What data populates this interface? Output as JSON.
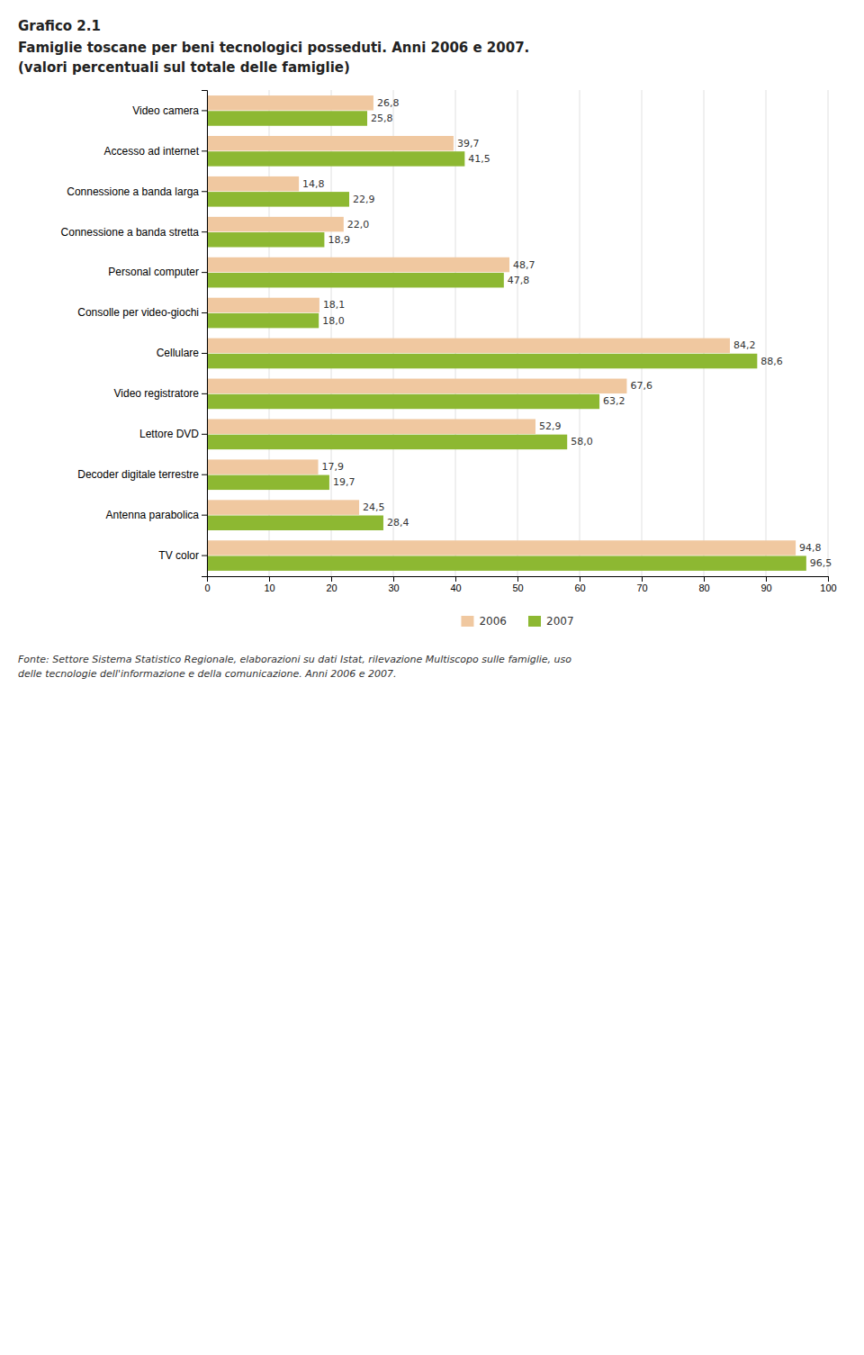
{
  "chart_data": {
    "type": "bar",
    "orientation": "horizontal",
    "title": "Grafico 2.1",
    "subtitle": [
      "Famiglie toscane per beni tecnologici posseduti. Anni 2006 e 2007.",
      "(valori percentuali sul totale delle famiglie)"
    ],
    "categories": [
      "Video camera",
      "Accesso ad internet",
      "Connessione a banda larga",
      "Connessione a banda stretta",
      "Personal computer",
      "Consolle per video-giochi",
      "Cellulare",
      "Video registratore",
      "Lettore DVD",
      "Decoder digitale terrestre",
      "Antenna parabolica",
      "TV color"
    ],
    "series": [
      {
        "name": "2006",
        "color": "#F0C8A0",
        "values": [
          26.8,
          39.7,
          14.8,
          22.0,
          48.7,
          18.1,
          84.2,
          67.6,
          52.9,
          17.9,
          24.5,
          94.8
        ],
        "value_labels": [
          "26,8",
          "39,7",
          "14,8",
          "22,0",
          "48,7",
          "18,1",
          "84,2",
          "67,6",
          "52,9",
          "17,9",
          "24,5",
          "94,8"
        ]
      },
      {
        "name": "2007",
        "color": "#8DB832",
        "values": [
          25.8,
          41.5,
          22.9,
          18.9,
          47.8,
          18.0,
          88.6,
          63.2,
          58.0,
          19.7,
          28.4,
          96.5
        ],
        "value_labels": [
          "25,8",
          "41,5",
          "22,9",
          "18,9",
          "47,8",
          "18,0",
          "88,6",
          "63,2",
          "58,0",
          "19,7",
          "28,4",
          "96,5"
        ]
      }
    ],
    "xlim": [
      0,
      100
    ],
    "xticks": [
      0,
      10,
      20,
      30,
      40,
      50,
      60,
      70,
      80,
      90,
      100
    ],
    "grid": true,
    "data_labels": true,
    "legend": "bottom",
    "annotations": [
      "Fonte: Settore Sistema Statistico Regionale, elaborazioni su dati Istat, rilevazione Multiscopo sulle famiglie, uso",
      "delle tecnologie dell'informazione e della comunicazione. Anni 2006 e 2007."
    ]
  }
}
